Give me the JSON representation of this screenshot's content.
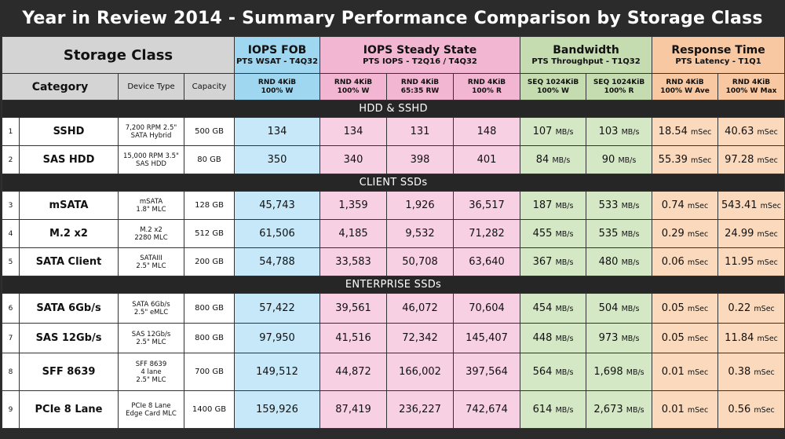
{
  "title": "Year in Review 2014 - Summary Performance Comparison by Storage Class",
  "header": {
    "storage_class": "Storage Class",
    "category": "Category",
    "device_type": "Device Type",
    "capacity": "Capacity",
    "groups": [
      {
        "title": "IOPS FOB",
        "sub": "PTS WSAT - T4Q32",
        "color": "#9fd6f0",
        "metrics": [
          {
            "l1": "RND 4KiB",
            "l2": "100% W"
          }
        ]
      },
      {
        "title": "IOPS Steady State",
        "sub": "PTS IOPS -   T2Q16 / T4Q32",
        "color": "#f2b6d2",
        "metrics": [
          {
            "l1": "RND 4KiB",
            "l2": "100% W"
          },
          {
            "l1": "RND 4KiB",
            "l2": "65:35 RW"
          },
          {
            "l1": "RND 4KiB",
            "l2": "100% R"
          }
        ]
      },
      {
        "title": "Bandwidth",
        "sub": "PTS Throughput - T1Q32",
        "color": "#c4dcb0",
        "metrics": [
          {
            "l1": "SEQ 1024KiB",
            "l2": "100% W"
          },
          {
            "l1": "SEQ 1024KiB",
            "l2": "100% R"
          }
        ]
      },
      {
        "title": "Response Time",
        "sub": "PTS Latency - T1Q1",
        "color": "#f7c8a2",
        "metrics": [
          {
            "l1": "RND 4KiB",
            "l2": "100% W Ave"
          },
          {
            "l1": "RND 4KiB",
            "l2": "100% W Max"
          }
        ]
      }
    ]
  },
  "units": {
    "bandwidth": "MB/s",
    "latency": "mSec"
  },
  "sections": [
    {
      "name": "HDD & SSHD",
      "rows": [
        {
          "num": "1",
          "category": "SSHD",
          "device": [
            "7,200 RPM 2.5\"",
            "SATA Hybrid"
          ],
          "capacity": "500 GB",
          "fob": "134",
          "iops_w": "134",
          "iops_rw": "131",
          "iops_r": "148",
          "bw_w": "107",
          "bw_r": "103",
          "lat_ave": "18.54",
          "lat_max": "40.63"
        },
        {
          "num": "2",
          "category": "SAS HDD",
          "device": [
            "15,000 RPM 3.5\"",
            "SAS HDD"
          ],
          "capacity": "80 GB",
          "fob": "350",
          "iops_w": "340",
          "iops_rw": "398",
          "iops_r": "401",
          "bw_w": "84",
          "bw_r": "90",
          "lat_ave": "55.39",
          "lat_max": "97.28"
        }
      ]
    },
    {
      "name": "CLIENT SSDs",
      "rows": [
        {
          "num": "3",
          "category": "mSATA",
          "device": [
            "mSATA",
            "1.8\" MLC"
          ],
          "capacity": "128 GB",
          "fob": "45,743",
          "iops_w": "1,359",
          "iops_rw": "1,926",
          "iops_r": "36,517",
          "bw_w": "187",
          "bw_r": "533",
          "lat_ave": "0.74",
          "lat_max": "543.41"
        },
        {
          "num": "4",
          "category": "M.2 x2",
          "device": [
            "M.2 x2",
            "2280 MLC"
          ],
          "capacity": "512 GB",
          "fob": "61,506",
          "iops_w": "4,185",
          "iops_rw": "9,532",
          "iops_r": "71,282",
          "bw_w": "455",
          "bw_r": "535",
          "lat_ave": "0.29",
          "lat_max": "24.99"
        },
        {
          "num": "5",
          "category": "SATA Client",
          "device": [
            "SATAIII",
            "2.5\" MLC"
          ],
          "capacity": "200 GB",
          "fob": "54,788",
          "iops_w": "33,583",
          "iops_rw": "50,708",
          "iops_r": "63,640",
          "bw_w": "367",
          "bw_r": "480",
          "lat_ave": "0.06",
          "lat_max": "11.95"
        }
      ]
    },
    {
      "name": "ENTERPRISE SSDs",
      "rows": [
        {
          "num": "6",
          "category": "SATA 6Gb/s",
          "device": [
            "SATA 6Gb/s",
            "2.5\" eMLC"
          ],
          "capacity": "800 GB",
          "fob": "57,422",
          "iops_w": "39,561",
          "iops_rw": "46,072",
          "iops_r": "70,604",
          "bw_w": "454",
          "bw_r": "504",
          "lat_ave": "0.05",
          "lat_max": "0.22"
        },
        {
          "num": "7",
          "category": "SAS 12Gb/s",
          "device": [
            "SAS 12Gb/s",
            "2.5\" MLC"
          ],
          "capacity": "800 GB",
          "fob": "97,950",
          "iops_w": "41,516",
          "iops_rw": "72,342",
          "iops_r": "145,407",
          "bw_w": "448",
          "bw_r": "973",
          "lat_ave": "0.05",
          "lat_max": "11.84"
        },
        {
          "num": "8",
          "category": "SFF 8639",
          "device": [
            "SFF 8639",
            "4 lane",
            "2.5\" MLC"
          ],
          "capacity": "700 GB",
          "fob": "149,512",
          "iops_w": "44,872",
          "iops_rw": "166,002",
          "iops_r": "397,564",
          "bw_w": "564",
          "bw_r": "1,698",
          "lat_ave": "0.01",
          "lat_max": "0.38"
        },
        {
          "num": "9",
          "category": "PCIe 8 Lane",
          "device": [
            "PCIe 8 Lane",
            "Edge Card MLC"
          ],
          "capacity": "1400 GB",
          "fob": "159,926",
          "iops_w": "87,419",
          "iops_rw": "236,227",
          "iops_r": "742,674",
          "bw_w": "614",
          "bw_r": "2,673",
          "lat_ave": "0.01",
          "lat_max": "0.56"
        }
      ]
    }
  ]
}
